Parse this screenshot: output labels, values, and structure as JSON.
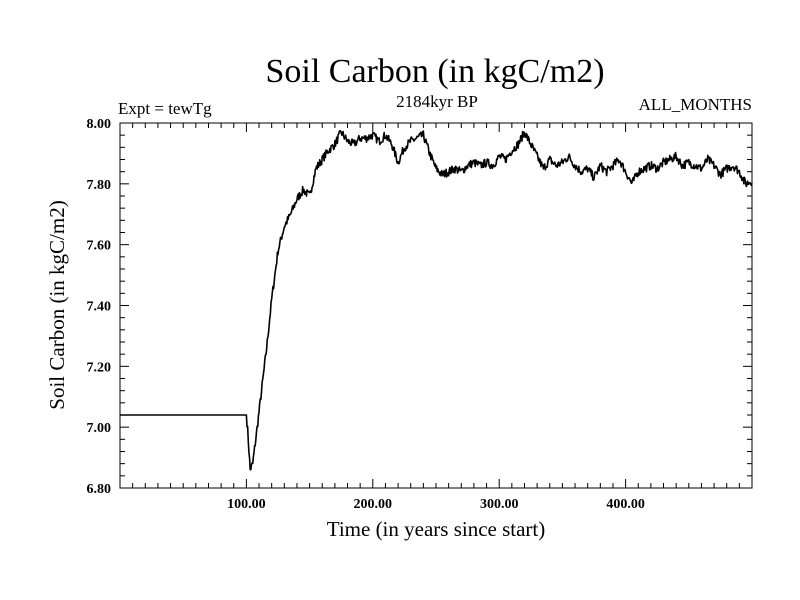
{
  "chart_data": {
    "type": "line",
    "title": "Soil Carbon (in kgC/m2)",
    "subtitle_left": "Expt = tewTg",
    "subtitle_center": "2184kyr BP",
    "subtitle_right": "ALL_MONTHS",
    "xlabel": "Time (in years since start)",
    "ylabel": "Soil Carbon (in kgC/m2)",
    "xlim": [
      0,
      500
    ],
    "ylim": [
      6.8,
      8.0
    ],
    "xticks": [
      100,
      200,
      300,
      400
    ],
    "xtick_labels": [
      "100.00",
      "200.00",
      "300.00",
      "400.00"
    ],
    "yticks": [
      6.8,
      7.0,
      7.2,
      7.4,
      7.6,
      7.8,
      8.0
    ],
    "ytick_labels": [
      "6.80",
      "7.00",
      "7.20",
      "7.40",
      "7.60",
      "7.80",
      "8.00"
    ],
    "series": [
      {
        "name": "Soil Carbon",
        "color": "#000000",
        "x": [
          0,
          100,
          101,
          103,
          105,
          108,
          112,
          116,
          120,
          125,
          130,
          135,
          140,
          145,
          150,
          155,
          160,
          165,
          170,
          175,
          180,
          185,
          190,
          195,
          200,
          205,
          210,
          215,
          220,
          225,
          230,
          235,
          240,
          245,
          250,
          255,
          260,
          265,
          270,
          275,
          280,
          285,
          290,
          295,
          300,
          305,
          310,
          315,
          320,
          325,
          330,
          335,
          340,
          345,
          350,
          355,
          360,
          365,
          370,
          375,
          380,
          385,
          390,
          395,
          400,
          405,
          410,
          415,
          420,
          425,
          430,
          435,
          440,
          445,
          450,
          455,
          460,
          465,
          470,
          475,
          480,
          485,
          490,
          495,
          500
        ],
        "values": [
          7.04,
          7.04,
          6.99,
          6.86,
          6.88,
          6.98,
          7.12,
          7.26,
          7.42,
          7.58,
          7.66,
          7.7,
          7.75,
          7.78,
          7.76,
          7.85,
          7.88,
          7.91,
          7.93,
          7.97,
          7.94,
          7.93,
          7.95,
          7.95,
          7.96,
          7.94,
          7.96,
          7.93,
          7.87,
          7.92,
          7.94,
          7.95,
          7.96,
          7.9,
          7.85,
          7.83,
          7.84,
          7.85,
          7.84,
          7.86,
          7.87,
          7.86,
          7.87,
          7.86,
          7.89,
          7.88,
          7.91,
          7.93,
          7.97,
          7.93,
          7.89,
          7.85,
          7.88,
          7.86,
          7.87,
          7.89,
          7.86,
          7.84,
          7.85,
          7.82,
          7.86,
          7.84,
          7.86,
          7.88,
          7.84,
          7.8,
          7.84,
          7.85,
          7.86,
          7.85,
          7.87,
          7.88,
          7.89,
          7.86,
          7.87,
          7.86,
          7.85,
          7.88,
          7.86,
          7.83,
          7.85,
          7.86,
          7.84,
          7.8,
          7.81
        ]
      }
    ]
  }
}
